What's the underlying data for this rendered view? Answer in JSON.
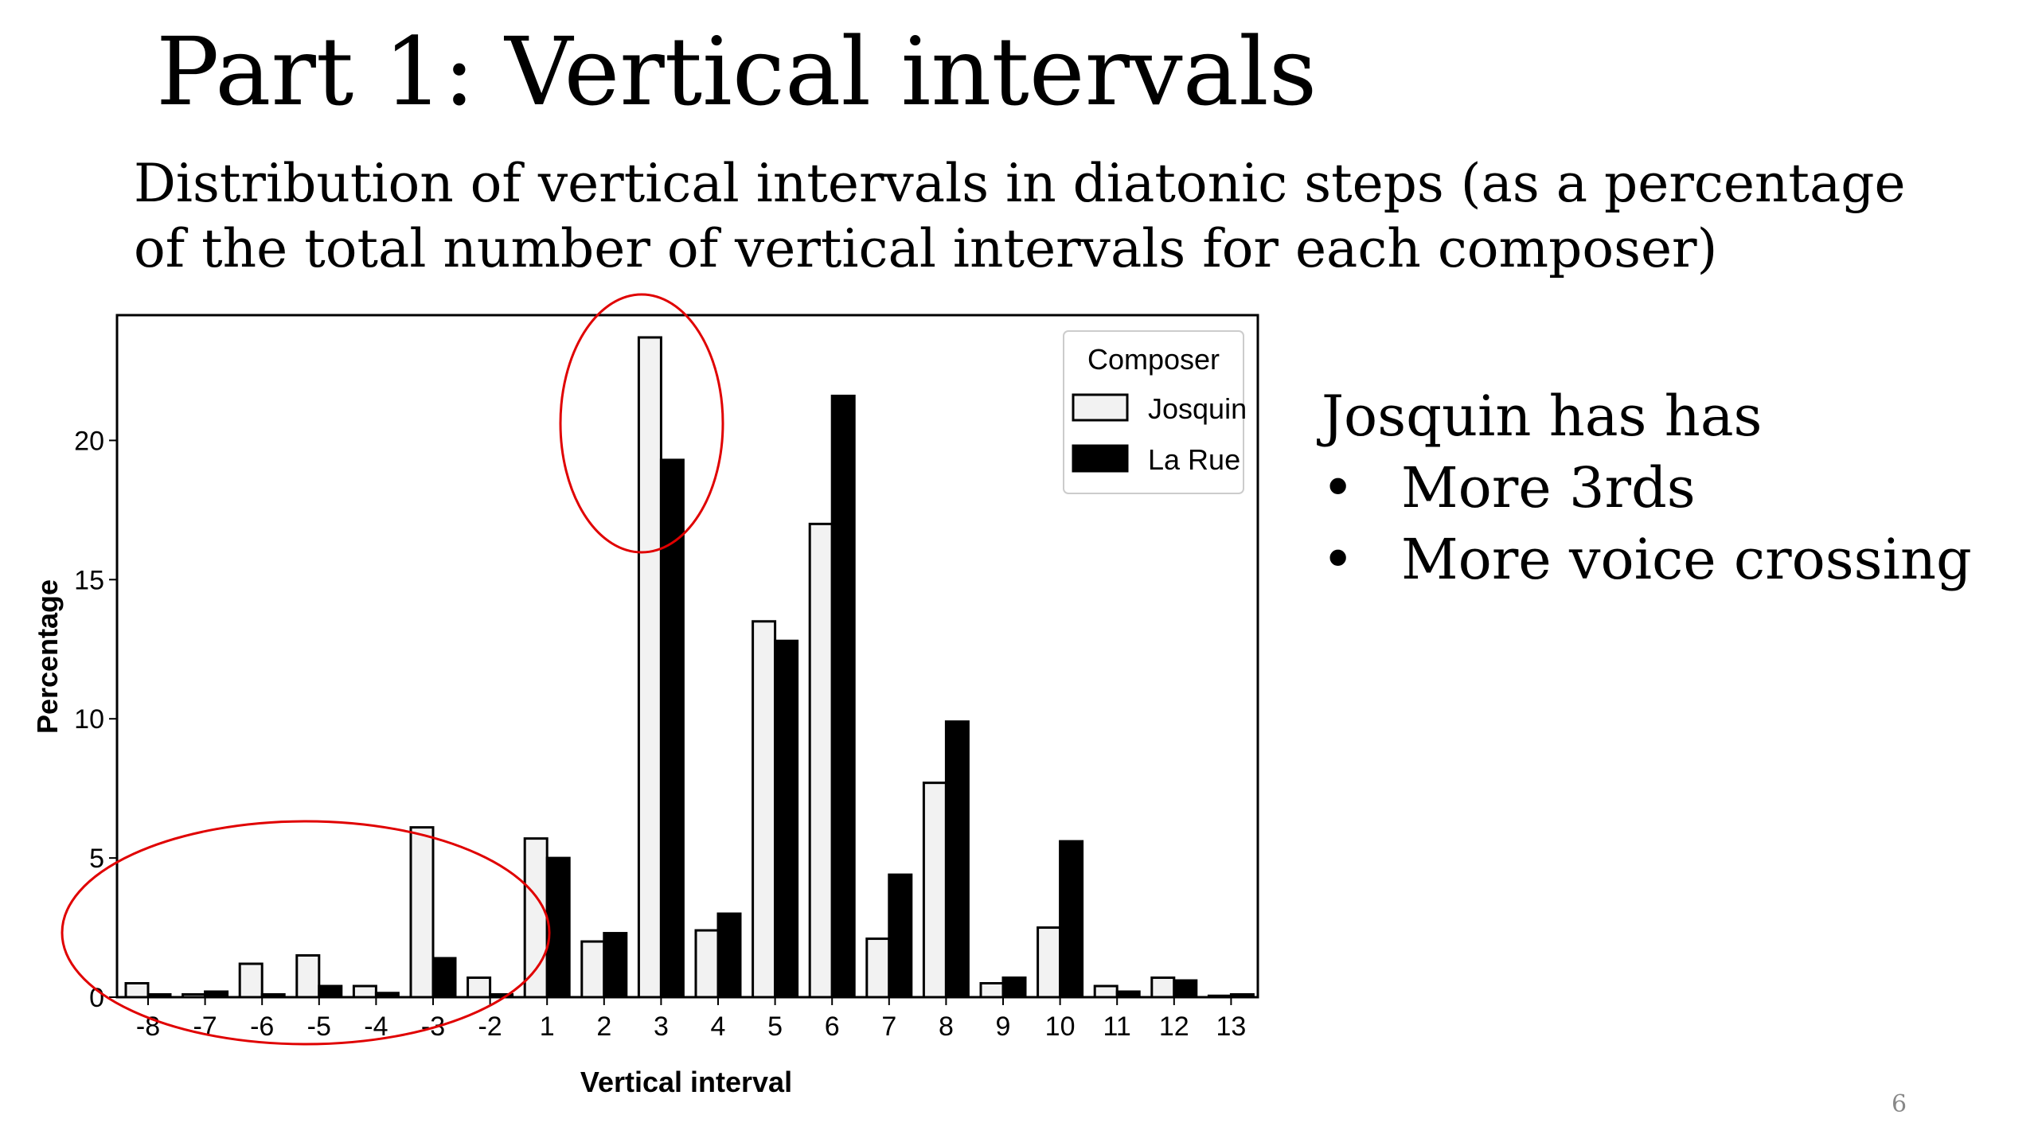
{
  "title": "Part 1: Vertical intervals",
  "subtitle_lines": [
    "Distribution of vertical intervals in diatonic steps (as a percentage",
    "of the total number of vertical intervals for each composer)"
  ],
  "side_text": {
    "heading": "Josquin has has",
    "bullets": [
      "More 3rds",
      "More voice crossing"
    ]
  },
  "page_number": "6",
  "colors": {
    "josquin": "#f2f2f2",
    "la_rue": "#000000",
    "annotation": "#e00000"
  },
  "chart_data": {
    "type": "bar",
    "xlabel": "Vertical interval",
    "ylabel": "Percentage",
    "ylim": [
      0,
      24.5
    ],
    "yticks": [
      0,
      5,
      10,
      15,
      20
    ],
    "categories": [
      "-8",
      "-7",
      "-6",
      "-5",
      "-4",
      "-3",
      "-2",
      "1",
      "2",
      "3",
      "4",
      "5",
      "6",
      "7",
      "8",
      "9",
      "10",
      "11",
      "12",
      "13"
    ],
    "legend_title": "Composer",
    "legend_position": "top-right",
    "grid": false,
    "series": [
      {
        "name": "Josquin",
        "values": [
          0.5,
          0.1,
          1.2,
          1.5,
          0.4,
          6.1,
          0.7,
          5.7,
          2.0,
          23.7,
          2.4,
          13.5,
          17.0,
          2.1,
          7.7,
          0.5,
          2.5,
          0.4,
          0.7,
          0.05
        ]
      },
      {
        "name": "La Rue",
        "values": [
          0.1,
          0.2,
          0.1,
          0.4,
          0.15,
          1.4,
          0.1,
          5.0,
          2.3,
          19.3,
          3.0,
          12.8,
          21.6,
          4.4,
          9.9,
          0.7,
          5.6,
          0.2,
          0.6,
          0.1
        ]
      }
    ],
    "annotations": [
      {
        "shape": "ellipse",
        "encloses_category": "3"
      },
      {
        "shape": "ellipse",
        "encloses_categories": [
          "-8",
          "-7",
          "-6",
          "-5",
          "-4",
          "-3",
          "-2"
        ]
      }
    ]
  }
}
